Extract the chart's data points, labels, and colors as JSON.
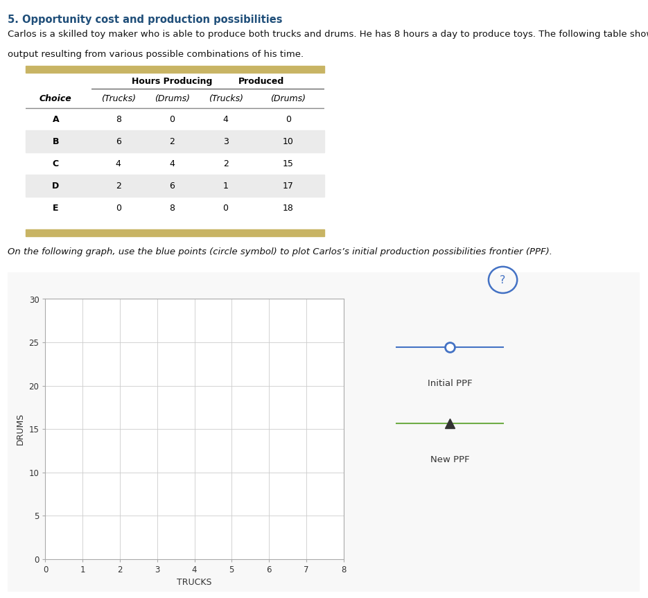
{
  "title": "5. Opportunity cost and production possibilities",
  "title_color": "#1F4E79",
  "body_text_line1": "Carlos is a skilled toy maker who is able to produce both trucks and drums. He has 8 hours a day to produce toys. The following table shows the daily",
  "body_text_line2": "output resulting from various possible combinations of his time.",
  "instruction_text": "On the following graph, use the blue points (circle symbol) to plot Carlos’s initial production possibilities frontier (PPF).",
  "table": {
    "rows": [
      [
        "A",
        8,
        0,
        4,
        0
      ],
      [
        "B",
        6,
        2,
        3,
        10
      ],
      [
        "C",
        4,
        4,
        2,
        15
      ],
      [
        "D",
        2,
        6,
        1,
        17
      ],
      [
        "E",
        0,
        8,
        0,
        18
      ]
    ],
    "shaded_rows": [
      1,
      3
    ],
    "shaded_color": "#EBEBEB",
    "header_bar_color": "#C8B464",
    "divider_color": "#888888"
  },
  "ppf_initial": {
    "color": "#4472C4",
    "marker": "o",
    "linewidth": 1.5,
    "markersize": 8
  },
  "ppf_new": {
    "color": "#70AD47",
    "marker": "^",
    "linewidth": 1.5,
    "markersize": 8
  },
  "graph": {
    "xlabel": "TRUCKS",
    "ylabel": "DRUMS",
    "xlim": [
      0,
      8
    ],
    "ylim": [
      0,
      30
    ],
    "xticks": [
      0,
      1,
      2,
      3,
      4,
      5,
      6,
      7,
      8
    ],
    "yticks": [
      0,
      5,
      10,
      15,
      20,
      25,
      30
    ],
    "grid_color": "#CCCCCC",
    "bg_color": "#FFFFFF",
    "legend_initial": "Initial PPF",
    "legend_new": "New PPF"
  },
  "question_mark_color": "#4472C4",
  "outer_box_color": "#BBBBBB"
}
